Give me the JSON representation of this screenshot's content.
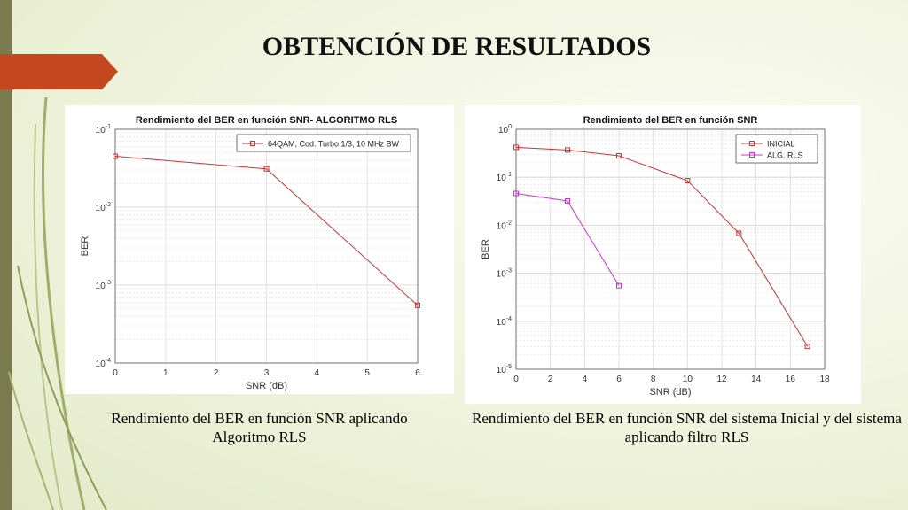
{
  "slide": {
    "title": "OBTENCIÓN DE RESULTADOS",
    "accent_color": "#c4481f",
    "bar_color": "#7a7a4f"
  },
  "captions": {
    "left": [
      "Rendimiento del BER en función SNR aplicando",
      "Algoritmo RLS"
    ],
    "right": [
      "Rendimiento del BER en función SNR del sistema Inicial y del sistema",
      "aplicando filtro RLS"
    ]
  },
  "chart_data": [
    {
      "type": "line",
      "title": "Rendimiento del BER en función SNR- ALGORITMO RLS",
      "xlabel": "SNR (dB)",
      "ylabel": "BER",
      "xlim": [
        0,
        6
      ],
      "ylim": [
        0.0001,
        0.1
      ],
      "yscale": "log",
      "grid": true,
      "xticks": [
        "0",
        "1",
        "2",
        "3",
        "4",
        "5",
        "6"
      ],
      "yticks": [
        {
          "base": "10",
          "exp": "-1"
        },
        {
          "base": "10",
          "exp": "-2"
        },
        {
          "base": "10",
          "exp": "-3"
        },
        {
          "base": "10",
          "exp": "-4"
        }
      ],
      "legend_position": "top-right",
      "series": [
        {
          "name": "64QAM, Cod. Turbo 1/3, 10 MHz BW",
          "color": "#cc3333",
          "marker": "square",
          "x": [
            0,
            3,
            6
          ],
          "y": [
            0.045,
            0.031,
            0.00055
          ]
        }
      ]
    },
    {
      "type": "line",
      "title": "Rendimiento del BER en función SNR",
      "xlabel": "SNR (dB)",
      "ylabel": "BER",
      "xlim": [
        0,
        18
      ],
      "ylim": [
        1e-05,
        1
      ],
      "yscale": "log",
      "grid": true,
      "xticks": [
        "0",
        "2",
        "4",
        "6",
        "8",
        "10",
        "12",
        "14",
        "16",
        "18"
      ],
      "yticks": [
        {
          "base": "10",
          "exp": "0"
        },
        {
          "base": "10",
          "exp": "-1"
        },
        {
          "base": "10",
          "exp": "-2"
        },
        {
          "base": "10",
          "exp": "-3"
        },
        {
          "base": "10",
          "exp": "-4"
        },
        {
          "base": "10",
          "exp": "-5"
        }
      ],
      "legend_position": "top-right",
      "series": [
        {
          "name": "INICIAL",
          "color": "#cc3333",
          "marker": "square",
          "x": [
            0,
            3,
            6,
            10,
            13,
            17
          ],
          "y": [
            0.42,
            0.37,
            0.28,
            0.085,
            0.0068,
            3e-05
          ]
        },
        {
          "name": "ALG. RLS",
          "color": "#cc33cc",
          "marker": "square",
          "x": [
            0,
            3,
            6
          ],
          "y": [
            0.046,
            0.032,
            0.00055
          ]
        }
      ]
    }
  ]
}
